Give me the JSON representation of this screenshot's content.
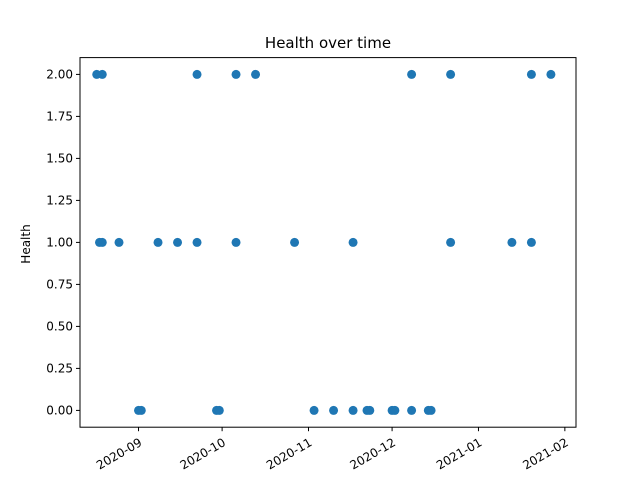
{
  "chart_data": {
    "type": "scatter",
    "title": "Health  over time",
    "xlabel": "",
    "ylabel": "Health",
    "xlim": [
      "2020-08-11",
      "2021-02-05"
    ],
    "ylim": [
      -0.1,
      2.1
    ],
    "x_ticks": [
      "2020-09-01",
      "2020-10-01",
      "2020-11-01",
      "2020-12-01",
      "2021-01-01",
      "2021-02-01"
    ],
    "x_tick_labels": [
      "2020-09",
      "2020-10",
      "2020-11",
      "2020-12",
      "2021-01",
      "2021-02"
    ],
    "y_ticks": [
      0.0,
      0.25,
      0.5,
      0.75,
      1.0,
      1.25,
      1.5,
      1.75,
      2.0
    ],
    "y_tick_labels": [
      "0.00",
      "0.25",
      "0.50",
      "0.75",
      "1.00",
      "1.25",
      "1.50",
      "1.75",
      "2.00"
    ],
    "grid": false,
    "color": "#1f77b4",
    "series": [
      {
        "x": [
          "2020-08-18",
          "2020-08-19",
          "2020-08-25",
          "2020-09-08",
          "2020-09-15",
          "2020-09-22",
          "2020-10-06",
          "2020-10-27",
          "2020-11-17",
          "2020-12-22",
          "2021-01-13",
          "2021-01-20",
          "2020-09-01",
          "2020-09-02",
          "2020-09-29",
          "2020-09-30",
          "2020-11-03",
          "2020-11-10",
          "2020-11-17",
          "2020-11-22",
          "2020-11-23",
          "2020-12-01",
          "2020-12-02",
          "2020-12-08",
          "2020-12-14",
          "2020-12-15",
          "2020-08-17",
          "2020-08-19",
          "2020-09-22",
          "2020-10-06",
          "2020-10-13",
          "2020-12-08",
          "2020-12-22",
          "2021-01-20",
          "2021-01-27"
        ],
        "y": [
          1,
          1,
          1,
          1,
          1,
          1,
          1,
          1,
          1,
          1,
          1,
          1,
          0,
          0,
          0,
          0,
          0,
          0,
          0,
          0,
          0,
          0,
          0,
          0,
          0,
          0,
          2,
          2,
          2,
          2,
          2,
          2,
          2,
          2,
          2
        ]
      }
    ]
  }
}
